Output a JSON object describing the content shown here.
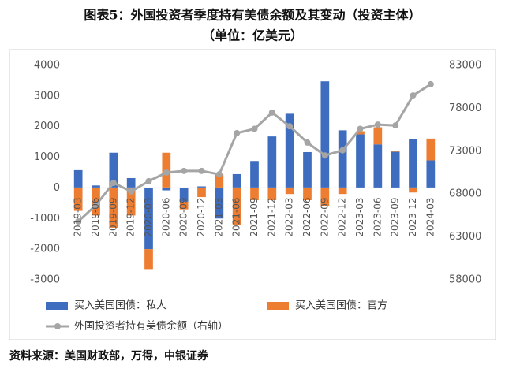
{
  "chart_data": {
    "type": "bar",
    "stacked": true,
    "title": "图表5：外国投资者季度持有美债余额及其变动（投资主体）",
    "subtitle": "（单位：亿美元）",
    "source": "资料来源：美国财政部，万得，中银证券",
    "categories": [
      "2019-03",
      "2019-06",
      "2019-09",
      "2019-12",
      "2020-03",
      "2020-06",
      "2020-09",
      "2020-12",
      "2021-03",
      "2021-06",
      "2021-09",
      "2021-12",
      "2022-03",
      "2022-06",
      "2022-09",
      "2022-12",
      "2023-03",
      "2023-06",
      "2023-09",
      "2023-12",
      "2024-03"
    ],
    "series": [
      {
        "name": "买入美国国债：私人",
        "type": "bar",
        "color": "#3e6dbf",
        "values": [
          580,
          80,
          1150,
          320,
          -2000,
          -80,
          -450,
          50,
          -1000,
          450,
          880,
          1680,
          2420,
          1170,
          3480,
          1880,
          1750,
          1420,
          1180,
          1600,
          900
        ]
      },
      {
        "name": "买入美国国债：官方",
        "type": "bar",
        "color": "#ed7d31",
        "values": [
          -750,
          -900,
          -1300,
          -900,
          -650,
          1150,
          -250,
          -300,
          450,
          -1200,
          -400,
          -400,
          -200,
          -400,
          -600,
          -200,
          100,
          560,
          30,
          -150,
          710
        ]
      },
      {
        "name": "外国投资者持有美债余额（右轴）",
        "type": "line",
        "axis": "y2",
        "color": "#a5a5a5",
        "values": [
          64800,
          66700,
          69300,
          68300,
          69500,
          70500,
          70700,
          70700,
          70300,
          75100,
          75600,
          77500,
          75900,
          74000,
          72500,
          73100,
          75600,
          76100,
          76000,
          79500,
          80800
        ]
      }
    ],
    "ylim": [
      -3000,
      4000
    ],
    "yticks": [
      -3000,
      -2000,
      -1000,
      0,
      1000,
      2000,
      3000,
      4000
    ],
    "y2lim": [
      58000,
      83000
    ],
    "y2ticks": [
      58000,
      63000,
      68000,
      73000,
      78000,
      83000
    ]
  }
}
